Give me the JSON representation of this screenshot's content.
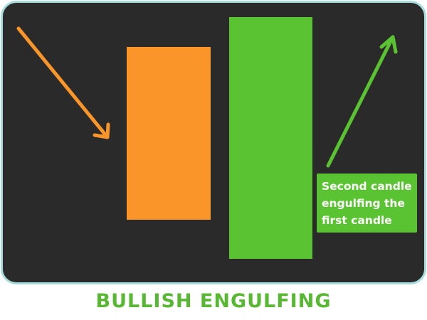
{
  "title": "BULLISH ENGULFING",
  "callout": {
    "lines": [
      "Second candle",
      "engulfing the",
      "first candle"
    ]
  },
  "colors": {
    "background": "#2a2a2a",
    "border": "#a8dcdc",
    "bearish_candle": "#fa9529",
    "bullish_candle": "#5ac331",
    "downtrend_arrow": "#fa9529",
    "uptrend_arrow": "#5ac331",
    "title_text": "#58b833",
    "callout_text": "#ffffff"
  },
  "icons": {
    "downtrend": "arrow-down-right-icon",
    "uptrend": "arrow-up-right-icon"
  }
}
